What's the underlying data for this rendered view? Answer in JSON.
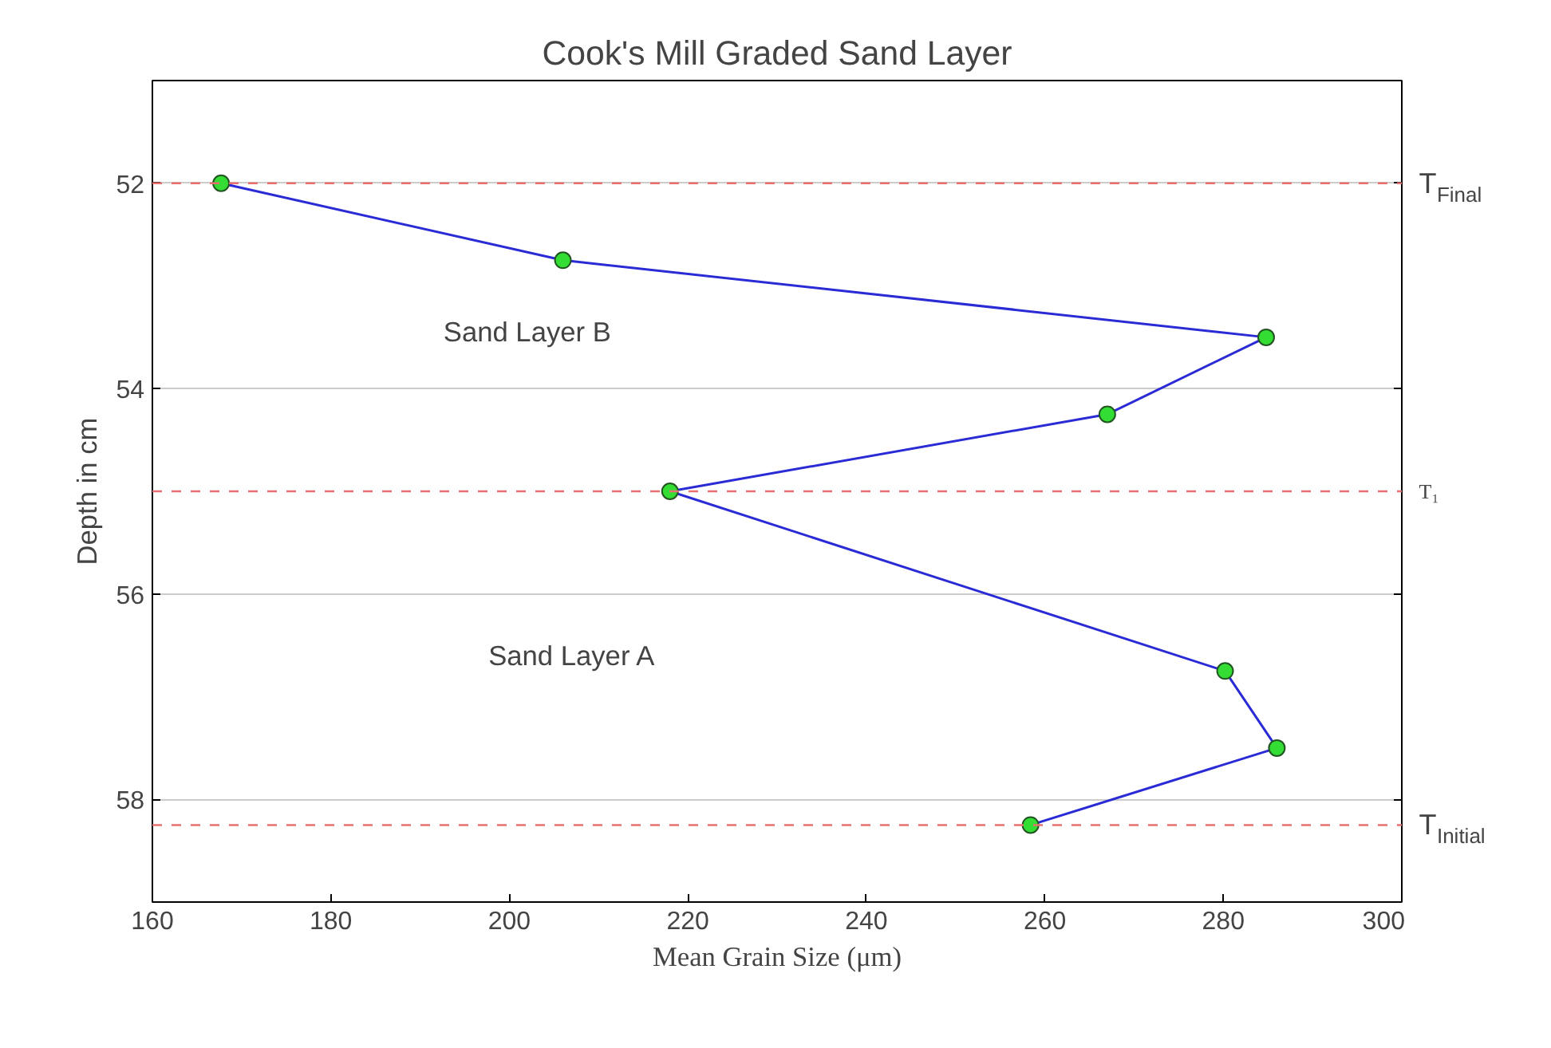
{
  "chart_data": {
    "type": "line",
    "title": "Cook's Mill Graded Sand Layer",
    "xlabel": "Mean Grain Size (μm)",
    "ylabel": "Depth in cm",
    "x": [
      167.7,
      206,
      284.8,
      267,
      218,
      280.2,
      286,
      258.4
    ],
    "series": [
      {
        "color": "#2b2bd6",
        "values": [
          52,
          52.75,
          53.5,
          54.25,
          55,
          56.75,
          57.5,
          58.25
        ]
      }
    ],
    "marker": "circle",
    "line_style": "solid",
    "grid": "y",
    "xlim": [
      160,
      300
    ],
    "xticks": [
      160,
      180,
      200,
      220,
      240,
      260,
      280,
      300
    ],
    "ylim": [
      59,
      51
    ],
    "yticks": [
      52,
      54,
      56,
      58
    ],
    "ref_lines": [
      {
        "axis": "y",
        "value": 52,
        "label": "T$_{Final}$",
        "color": "#e87070",
        "line_style": "dashed"
      },
      {
        "axis": "y",
        "value": 55,
        "label": "T₁",
        "color": "#e87070",
        "line_style": "dashed"
      },
      {
        "axis": "y",
        "value": 58.25,
        "label": "T$_{Initial}$",
        "color": "#e87070",
        "line_style": "dashed"
      }
    ],
    "annotations": [
      "Sand Layer B",
      "Sand Layer A"
    ]
  }
}
